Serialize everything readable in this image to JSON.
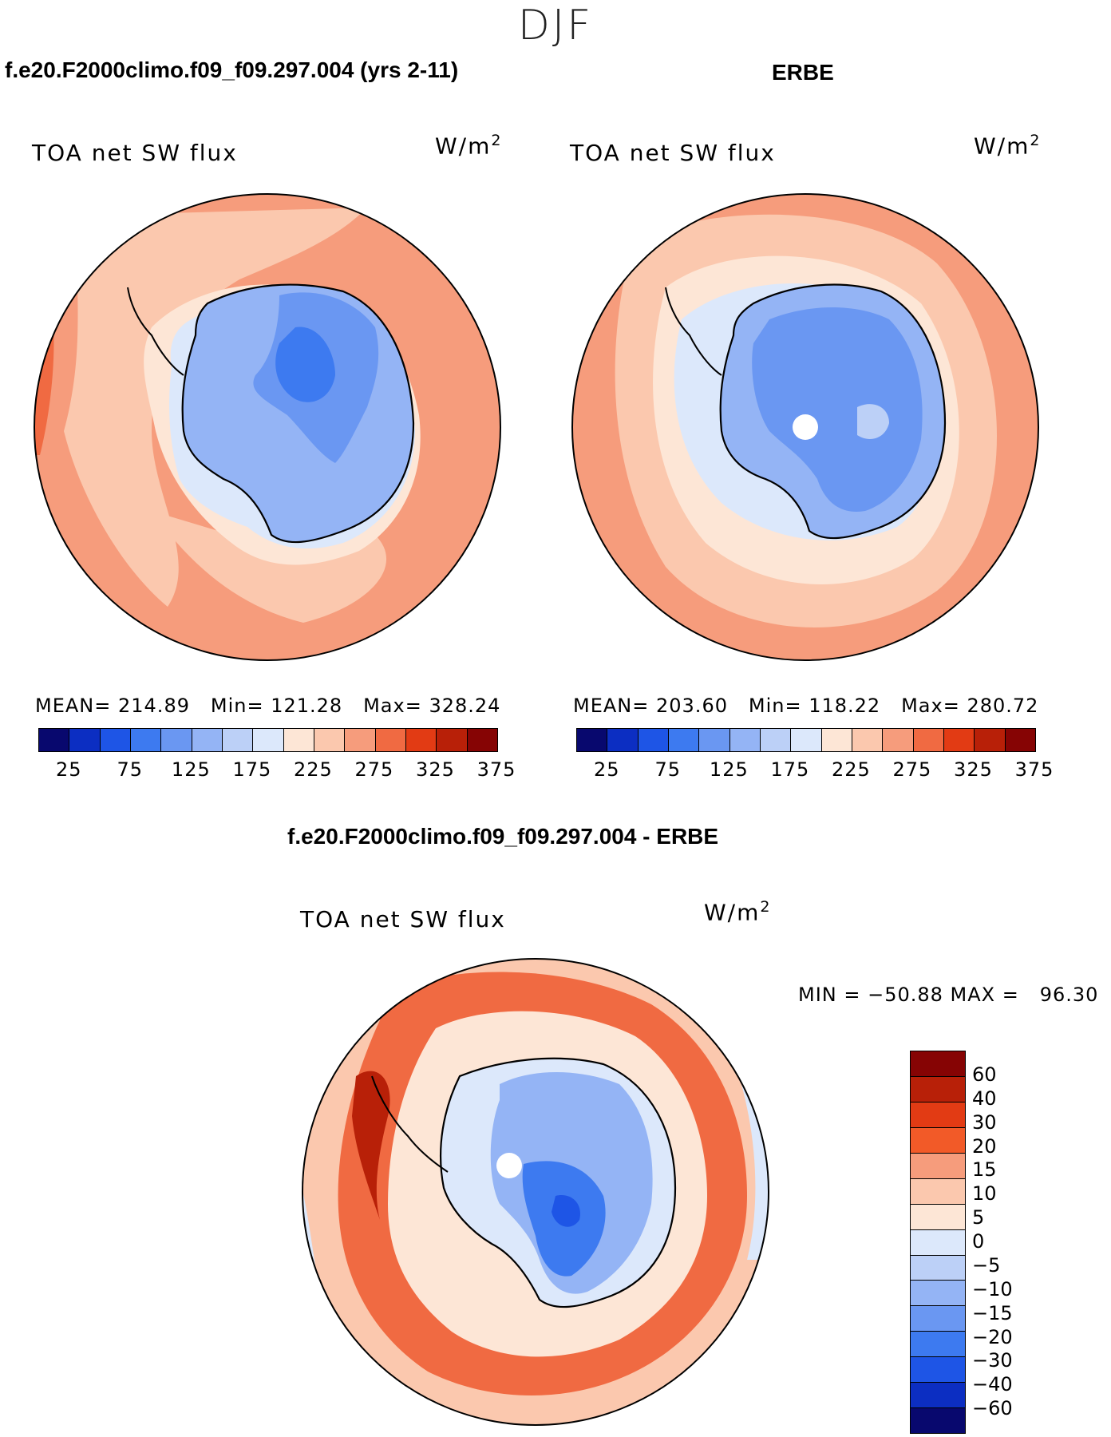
{
  "page": {
    "title": "DJF"
  },
  "colors": {
    "abs_scale": [
      "#08086e",
      "#0c2ec2",
      "#1e55e6",
      "#3d7af0",
      "#6a97f2",
      "#94b4f5",
      "#bcd0f7",
      "#dce8fb",
      "#fde6d6",
      "#fbc8ae",
      "#f69c7c",
      "#f06a42",
      "#e23b14",
      "#b82008",
      "#860404"
    ],
    "diff_scale": [
      "#860404",
      "#b82008",
      "#e23b14",
      "#f25a28",
      "#f69c7c",
      "#fbc8ae",
      "#fde6d6",
      "#dce8fb",
      "#bcd0f7",
      "#94b4f5",
      "#6a97f2",
      "#3d7af0",
      "#1e55e6",
      "#0c2ec2",
      "#08086e"
    ]
  },
  "panels": {
    "model": {
      "header": "f.e20.F2000climo.f09_f09.297.004 (yrs 2-11)",
      "label": "TOA net SW flux",
      "units": "W/m",
      "units_sup": "2",
      "stats": {
        "mean_label": "MEAN=",
        "mean": "214.89",
        "min_label": "Min=",
        "min": "121.28",
        "max_label": "Max=",
        "max": "328.24"
      },
      "colorbar_ticks": [
        "25",
        "75",
        "125",
        "175",
        "225",
        "275",
        "325",
        "375"
      ]
    },
    "obs": {
      "header": "ERBE",
      "label": "TOA net SW flux",
      "units": "W/m",
      "units_sup": "2",
      "stats": {
        "mean_label": "MEAN=",
        "mean": "203.60",
        "min_label": "Min=",
        "min": "118.22",
        "max_label": "Max=",
        "max": "280.72"
      },
      "colorbar_ticks": [
        "25",
        "75",
        "125",
        "175",
        "225",
        "275",
        "325",
        "375"
      ]
    },
    "diff": {
      "header": "f.e20.F2000climo.f09_f09.297.004 - ERBE",
      "label": "TOA net SW flux",
      "units": "W/m",
      "units_sup": "2",
      "minmax": "MIN = −50.88 MAX =   96.30",
      "colorbar_ticks": [
        "60",
        "40",
        "30",
        "20",
        "15",
        "10",
        "5",
        "0",
        "−5",
        "−10",
        "−15",
        "−20",
        "−30",
        "−40",
        "−60"
      ]
    }
  },
  "chart_data": [
    {
      "type": "heatmap",
      "title": "TOA net SW flux",
      "subtitle": "f.e20.F2000climo.f09_f09.297.004 (yrs 2-11)",
      "units": "W/m2",
      "projection": "south polar stereographic",
      "stats": {
        "mean": 214.89,
        "min": 121.28,
        "max": 328.24
      },
      "levels": [
        25,
        50,
        75,
        100,
        125,
        150,
        175,
        200,
        225,
        250,
        275,
        300,
        325,
        350,
        375
      ]
    },
    {
      "type": "heatmap",
      "title": "TOA net SW flux",
      "subtitle": "ERBE",
      "units": "W/m2",
      "projection": "south polar stereographic",
      "stats": {
        "mean": 203.6,
        "min": 118.22,
        "max": 280.72
      },
      "levels": [
        25,
        50,
        75,
        100,
        125,
        150,
        175,
        200,
        225,
        250,
        275,
        300,
        325,
        350,
        375
      ]
    },
    {
      "type": "heatmap",
      "title": "TOA net SW flux",
      "subtitle": "f.e20.F2000climo.f09_f09.297.004 - ERBE",
      "units": "W/m2",
      "projection": "south polar stereographic",
      "stats": {
        "min": -50.88,
        "max": 96.3
      },
      "levels": [
        -60,
        -40,
        -30,
        -20,
        -15,
        -10,
        -5,
        0,
        5,
        10,
        15,
        20,
        30,
        40,
        60
      ]
    }
  ]
}
